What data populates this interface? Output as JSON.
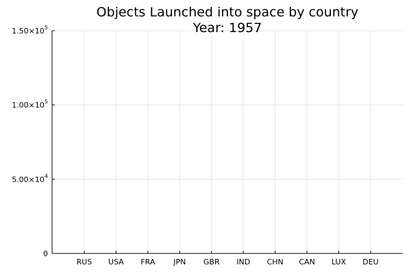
{
  "chart_data": {
    "type": "bar",
    "title": "Objects Launched into space by country",
    "subtitle": "Year: 1957",
    "xlabel": "",
    "ylabel": "",
    "categories": [
      "RUS",
      "USA",
      "FRA",
      "JPN",
      "GBR",
      "IND",
      "CHN",
      "CAN",
      "LUX",
      "DEU"
    ],
    "values": [
      0,
      0,
      0,
      0,
      0,
      0,
      0,
      0,
      0,
      0
    ],
    "ylim": [
      0,
      150000
    ],
    "yticks": [
      {
        "value": 0,
        "mantissa": "0",
        "exponent": ""
      },
      {
        "value": 50000,
        "mantissa": "5.00×10",
        "exponent": "4"
      },
      {
        "value": 100000,
        "mantissa": "1.00×10",
        "exponent": "5"
      },
      {
        "value": 150000,
        "mantissa": "1.50×10",
        "exponent": "5"
      }
    ],
    "grid": true,
    "legend": "none",
    "colors": {
      "bar": "#009af9",
      "grid": "#e6e6e6",
      "axis": "#000000"
    }
  }
}
